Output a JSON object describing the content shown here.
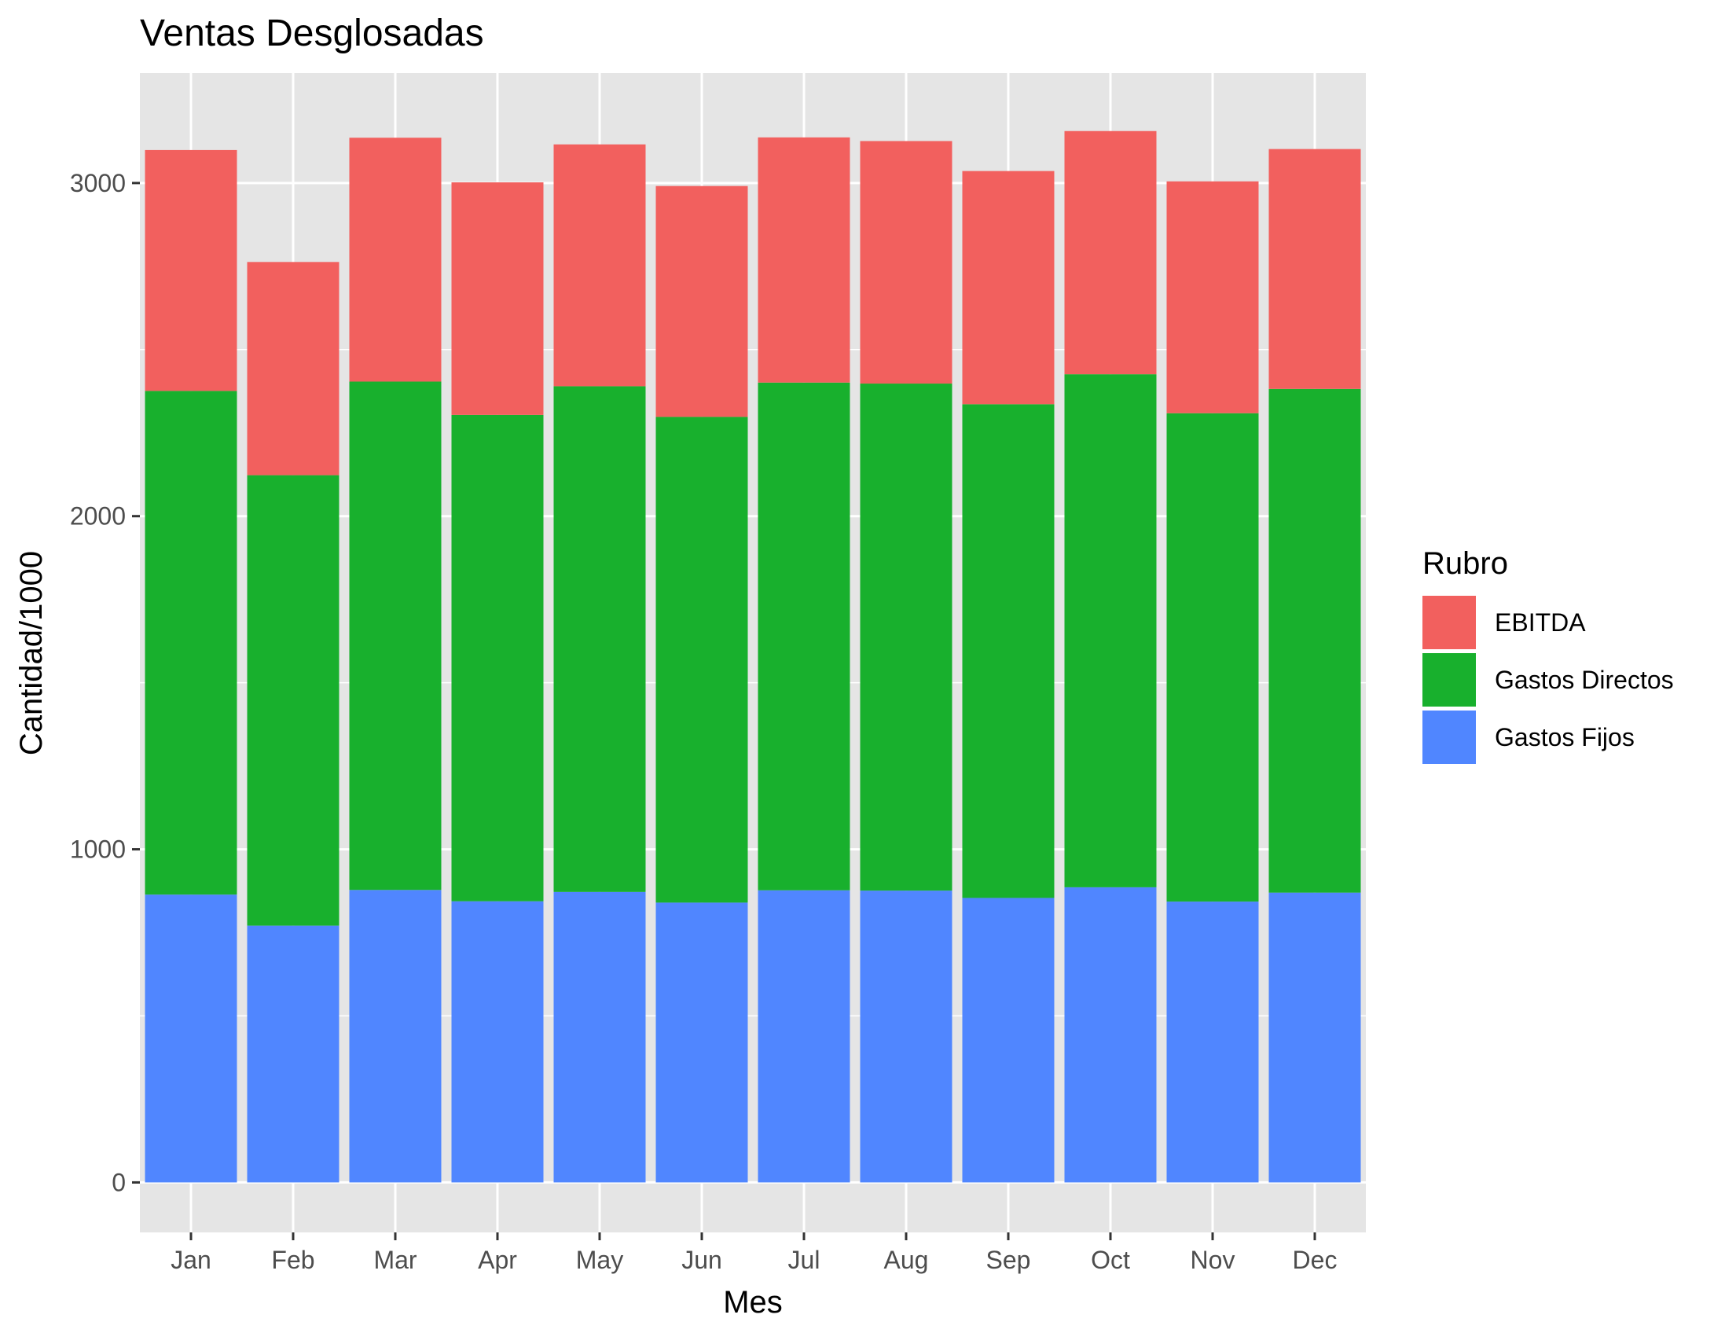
{
  "chart_data": {
    "type": "bar",
    "stacked": true,
    "title": "Ventas Desglosadas",
    "xlabel": "Mes",
    "ylabel": "Cantidad/1000",
    "categories": [
      "Jan",
      "Feb",
      "Mar",
      "Apr",
      "May",
      "Jun",
      "Jul",
      "Aug",
      "Sep",
      "Oct",
      "Nov",
      "Dec"
    ],
    "series": [
      {
        "name": "Gastos Fijos",
        "color": "#5086FF",
        "values": [
          864,
          771,
          878,
          844,
          872,
          840,
          877,
          876,
          854,
          886,
          843,
          870
        ]
      },
      {
        "name": "Gastos Directos",
        "color": "#18B02D",
        "values": [
          1512,
          1352,
          1526,
          1460,
          1518,
          1458,
          1524,
          1522,
          1482,
          1540,
          1466,
          1512
        ]
      },
      {
        "name": "EBITDA",
        "color": "#F2605E",
        "values": [
          723,
          640,
          732,
          698,
          726,
          693,
          736,
          728,
          700,
          730,
          696,
          720
        ]
      }
    ],
    "ylim": [
      -150,
      3330
    ],
    "yticks": [
      0,
      1000,
      2000,
      3000
    ],
    "grid": true,
    "legend": {
      "title": "Rubro",
      "position": "right",
      "items": [
        {
          "label": "EBITDA",
          "color": "#F2605E"
        },
        {
          "label": "Gastos Directos",
          "color": "#18B02D"
        },
        {
          "label": "Gastos Fijos",
          "color": "#5086FF"
        }
      ]
    },
    "colors": {
      "panel_background": "#E5E5E5",
      "gridline": "#FFFFFF",
      "tick_mark": "#333333"
    }
  }
}
